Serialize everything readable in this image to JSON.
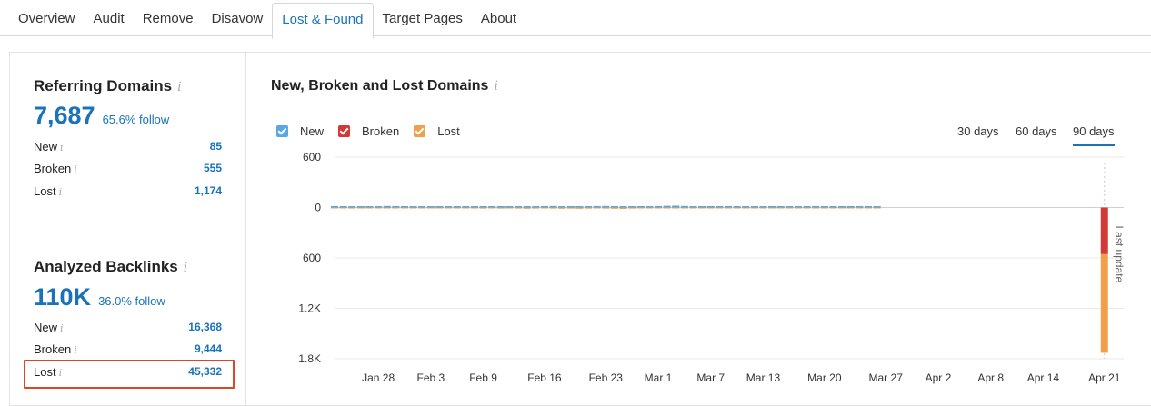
{
  "tabs": [
    "Overview",
    "Audit",
    "Remove",
    "Disavow",
    "Lost & Found",
    "Target Pages",
    "About"
  ],
  "active_tab": "Lost & Found",
  "referring_domains": {
    "title": "Referring Domains",
    "total": "7,687",
    "follow": "65.6% follow",
    "rows": [
      {
        "label": "New",
        "value": "85"
      },
      {
        "label": "Broken",
        "value": "555"
      },
      {
        "label": "Lost",
        "value": "1,174"
      }
    ]
  },
  "analyzed_backlinks": {
    "title": "Analyzed Backlinks",
    "total": "110K",
    "follow": "36.0% follow",
    "rows": [
      {
        "label": "New",
        "value": "16,368"
      },
      {
        "label": "Broken",
        "value": "9,444"
      },
      {
        "label": "Lost",
        "value": "45,332"
      }
    ]
  },
  "info_glyph": "i",
  "chart_header": {
    "title": "New, Broken and Lost Domains",
    "legend": [
      {
        "name": "New",
        "color": "#5aa7e6"
      },
      {
        "name": "Broken",
        "color": "#d33a35"
      },
      {
        "name": "Lost",
        "color": "#f0a04b"
      }
    ],
    "ranges": [
      "30 days",
      "60 days",
      "90 days"
    ],
    "active_range": "90 days"
  },
  "chart_data": {
    "type": "bar",
    "y_tick_labels": [
      "600",
      "0",
      "600",
      "1.2K",
      "1.8K"
    ],
    "y_tick_values": [
      600,
      0,
      -600,
      -1200,
      -1800
    ],
    "ylim": [
      -1800,
      600
    ],
    "x_tick_labels": [
      "Jan 28",
      "Feb 3",
      "Feb 9",
      "Feb 16",
      "Feb 23",
      "Mar 1",
      "Mar 7",
      "Mar 13",
      "Mar 20",
      "Mar 27",
      "Apr 2",
      "Apr 8",
      "Apr 14",
      "Apr 21"
    ],
    "x_day_offsets": [
      5,
      11,
      17,
      24,
      31,
      37,
      43,
      49,
      56,
      63,
      69,
      75,
      81,
      88
    ],
    "x_range_days": [
      0,
      90
    ],
    "daily_new": [
      15,
      15,
      14,
      13,
      14,
      15,
      18,
      17,
      15,
      14,
      13,
      14,
      15,
      16,
      15,
      14,
      13,
      14,
      16,
      15,
      14,
      13,
      15,
      16,
      17,
      18,
      15,
      14,
      13,
      15,
      17,
      18,
      15,
      14,
      13,
      15,
      16,
      17,
      20,
      22,
      18,
      15,
      14,
      15,
      16,
      17,
      15,
      14,
      13,
      15,
      16,
      15,
      14,
      15,
      16,
      17,
      15,
      14,
      13,
      15,
      16,
      15,
      14
    ],
    "daily_lost": [
      8,
      10,
      12,
      10,
      8,
      6,
      5,
      6,
      8,
      10,
      9,
      7,
      6,
      5,
      6,
      8,
      10,
      12,
      10,
      12,
      10,
      12,
      14,
      12,
      10,
      12,
      14,
      12,
      14,
      12,
      10,
      12,
      14,
      16,
      12,
      10,
      8,
      6,
      5,
      6,
      5,
      4,
      6,
      5,
      4,
      5,
      6,
      5,
      4,
      5,
      6,
      5,
      4,
      5,
      6,
      5,
      4,
      5,
      4,
      5,
      4,
      5,
      4
    ],
    "last_update": {
      "label": "Last update",
      "day": 88,
      "broken": 555,
      "lost": 1174
    }
  }
}
